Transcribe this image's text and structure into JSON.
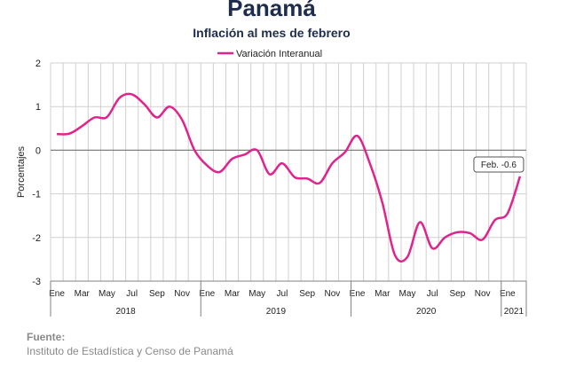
{
  "title": "Panamá",
  "subtitle": "Inflación al mes de febrero",
  "source": {
    "heading": "Fuente:",
    "text": "Instituto de Estadística y Censo de Panamá"
  },
  "colors": {
    "series": "#e0248e",
    "grid": "#d0d0d0",
    "axis": "#808080",
    "title": "#1f2d4d",
    "source": "#8a8a8a"
  },
  "chart_data": {
    "type": "line",
    "ylabel": "Porcentajes",
    "ylim": [
      -3,
      2
    ],
    "yticks": [
      2,
      1,
      0,
      -1,
      -2,
      -3
    ],
    "grid": true,
    "legend": "top-center",
    "month_labels": [
      "Ene",
      "Mar",
      "May",
      "Jul",
      "Sep",
      "Nov",
      "Ene",
      "Mar",
      "May",
      "Jul",
      "Sep",
      "Nov",
      "Ene",
      "Mar",
      "May",
      "Jul",
      "Sep",
      "Nov",
      "Ene"
    ],
    "year_labels": [
      "2018",
      "2019",
      "2020",
      "2021"
    ],
    "x": [
      "2018-01",
      "2018-02",
      "2018-03",
      "2018-04",
      "2018-05",
      "2018-06",
      "2018-07",
      "2018-08",
      "2018-09",
      "2018-10",
      "2018-11",
      "2018-12",
      "2019-01",
      "2019-02",
      "2019-03",
      "2019-04",
      "2019-05",
      "2019-06",
      "2019-07",
      "2019-08",
      "2019-09",
      "2019-10",
      "2019-11",
      "2019-12",
      "2020-01",
      "2020-02",
      "2020-03",
      "2020-04",
      "2020-05",
      "2020-06",
      "2020-07",
      "2020-08",
      "2020-09",
      "2020-10",
      "2020-11",
      "2020-12",
      "2021-01",
      "2021-02"
    ],
    "series": [
      {
        "name": "Variación Interanual",
        "values": [
          0.37,
          0.38,
          0.55,
          0.75,
          0.76,
          1.2,
          1.28,
          1.05,
          0.75,
          1.0,
          0.7,
          0.0,
          -0.35,
          -0.5,
          -0.2,
          -0.1,
          0.0,
          -0.55,
          -0.3,
          -0.62,
          -0.65,
          -0.75,
          -0.3,
          -0.05,
          0.33,
          -0.3,
          -1.2,
          -2.4,
          -2.45,
          -1.65,
          -2.25,
          -2.0,
          -1.88,
          -1.9,
          -2.05,
          -1.6,
          -1.45,
          -0.6
        ]
      }
    ],
    "annotation": {
      "text": "Feb. -0.6"
    }
  }
}
